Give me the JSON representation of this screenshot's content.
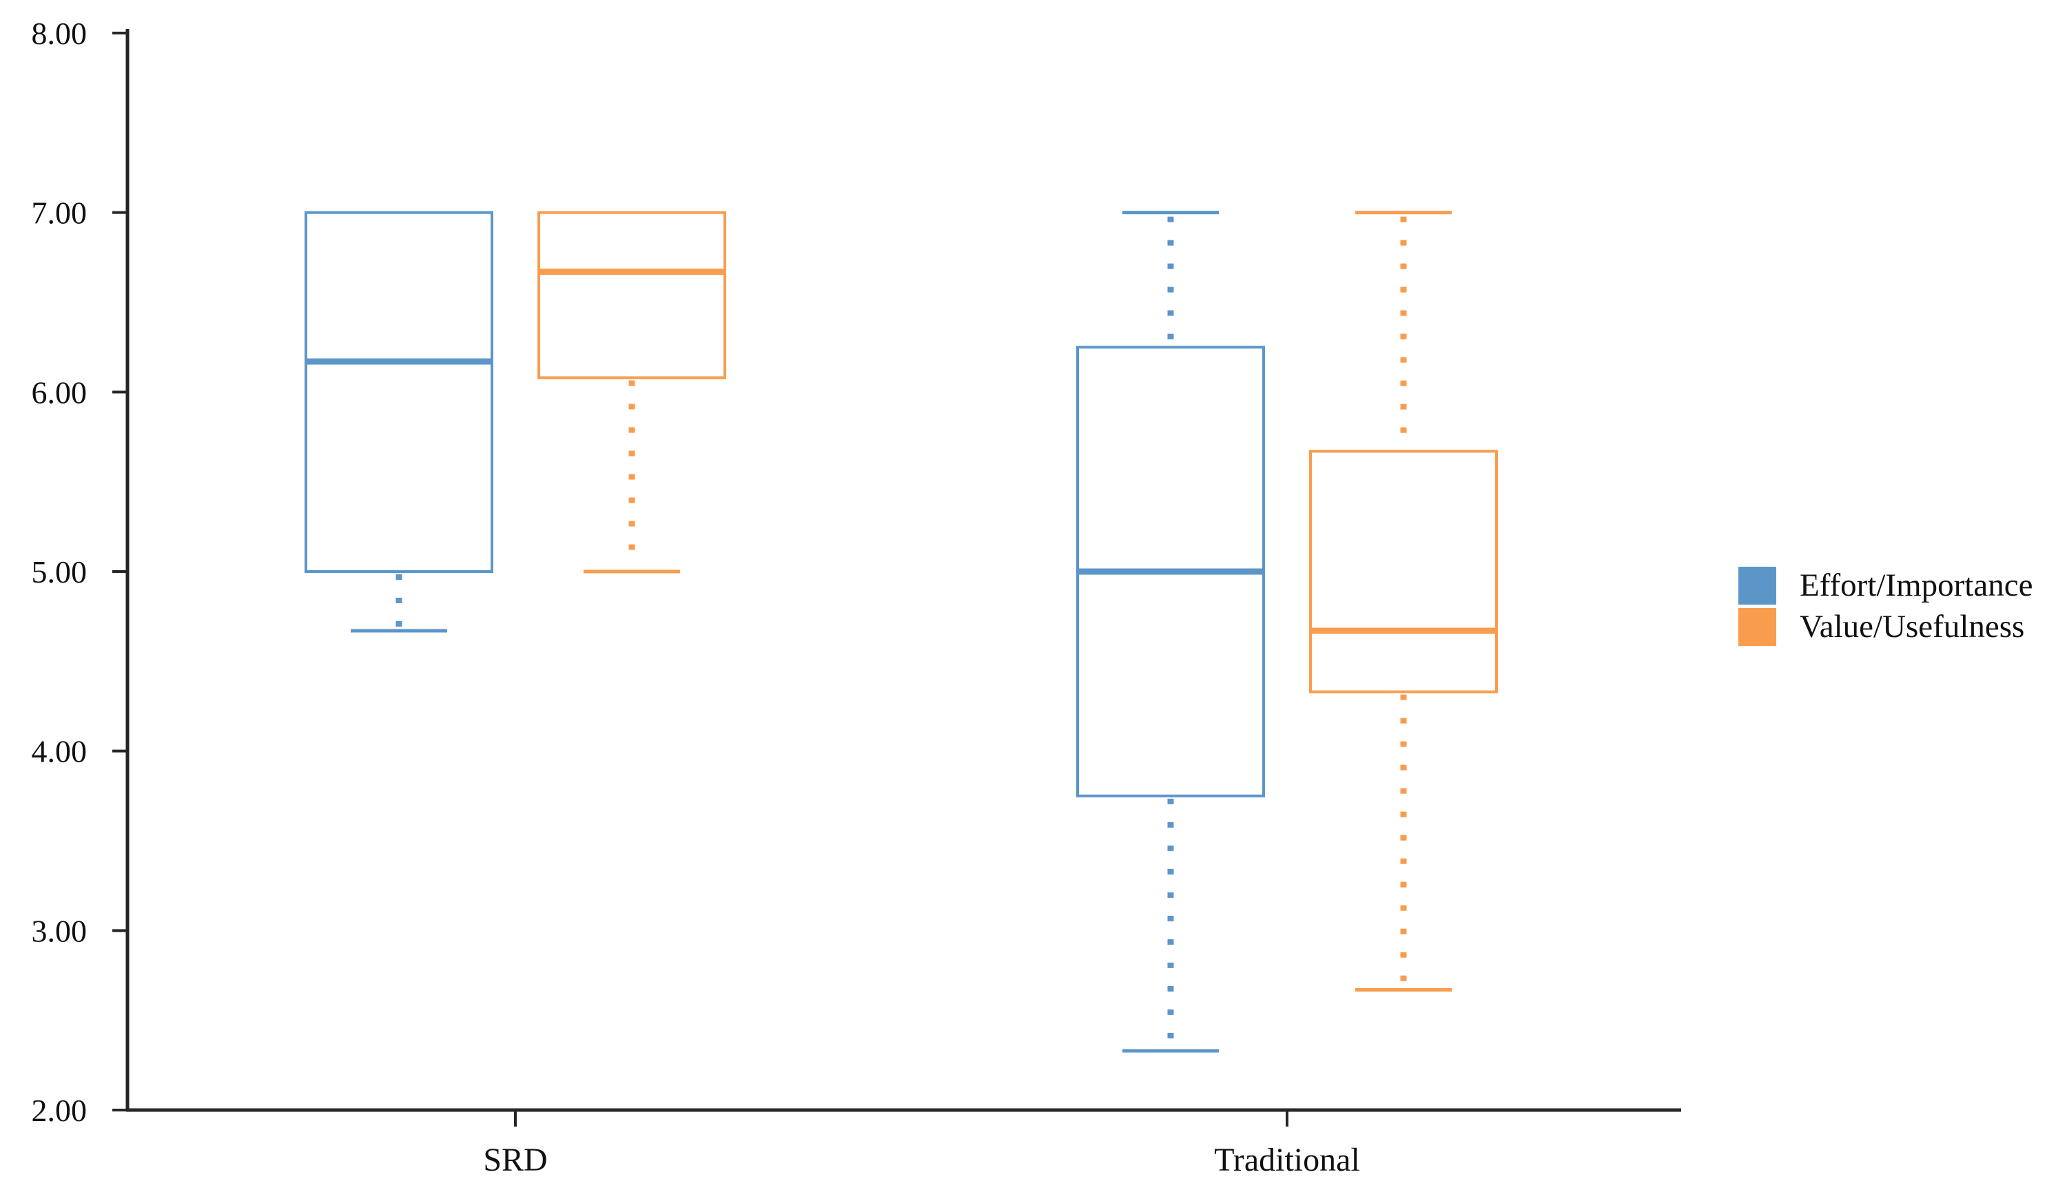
{
  "chart_data": {
    "type": "boxplot",
    "title": "",
    "xlabel": "",
    "ylabel": "",
    "grid": false,
    "categories": [
      "SRD",
      "Traditional"
    ],
    "series": [
      {
        "name": "Effort/Importance",
        "color": "#5C96C9",
        "boxes": [
          {
            "category": "SRD",
            "whisker_low": 4.67,
            "q1": 5.0,
            "median": 6.17,
            "q3": 7.0,
            "whisker_high": 7.0,
            "has_upper_whisker": false
          },
          {
            "category": "Traditional",
            "whisker_low": 2.33,
            "q1": 3.75,
            "median": 5.0,
            "q3": 6.25,
            "whisker_high": 7.0,
            "has_upper_whisker": true
          }
        ]
      },
      {
        "name": "Value/Usefulness",
        "color": "#F89C4E",
        "boxes": [
          {
            "category": "SRD",
            "whisker_low": 5.0,
            "q1": 6.08,
            "median": 6.67,
            "q3": 7.0,
            "whisker_high": 7.0,
            "has_upper_whisker": false
          },
          {
            "category": "Traditional",
            "whisker_low": 2.67,
            "q1": 4.33,
            "median": 4.67,
            "q3": 5.67,
            "whisker_high": 7.0,
            "has_upper_whisker": true
          }
        ]
      }
    ],
    "y_axis": {
      "min": 2,
      "max": 8,
      "step": 1,
      "tick_labels": [
        "2.00",
        "3.00",
        "4.00",
        "5.00",
        "6.00",
        "7.00",
        "8.00"
      ]
    },
    "legend": {
      "position": "right",
      "items": [
        {
          "label": "Effort/Importance",
          "color": "#5C96C9"
        },
        {
          "label": "Value/Usefulness",
          "color": "#F89C4E"
        }
      ]
    },
    "axis_color": "#262626"
  }
}
